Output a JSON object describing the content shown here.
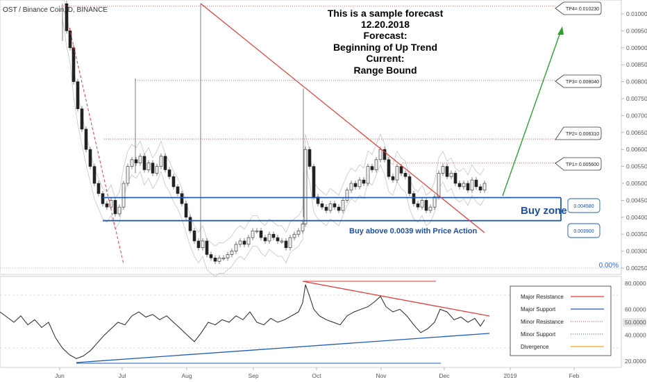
{
  "header": {
    "symbol_title": "OST / Binance Coin, D, BINANCE"
  },
  "annotation": {
    "lines": [
      "This is a sample forecast",
      "12.20.2018",
      "Forecast:",
      "Beginning of Up Trend",
      "Current:",
      "Range Bound"
    ]
  },
  "targets": [
    {
      "label": "TP4= 0.010230",
      "value": 0.01023
    },
    {
      "label": "TP3= 0.008040",
      "value": 0.00804
    },
    {
      "label": "TP2= 0.006310",
      "value": 0.00631
    },
    {
      "label": "TP1= 0.005600",
      "value": 0.0056
    }
  ],
  "zones": {
    "upper_label": "0.004580",
    "upper_value": 0.00458,
    "lower_label": "0.003900",
    "lower_value": 0.0039,
    "buy_zone_text": "Buy zone",
    "buy_above_text": "Buy above 0.0039 with Price Action"
  },
  "price_axis": {
    "ticks": [
      "0.010000",
      "0.009500",
      "0.009000",
      "0.008500",
      "0.008000",
      "0.007500",
      "0.007000",
      "0.006500",
      "0.006000",
      "0.005500",
      "0.005000",
      "0.004500",
      "0.004000",
      "0.003500",
      "0.003000",
      "0.002500"
    ],
    "percent_label": "0.00%"
  },
  "oscillator": {
    "ticks": [
      "80.0000",
      "60.0000",
      "50.0000",
      "40.0000",
      "20.0000"
    ],
    "highlight": "50.0000"
  },
  "time_axis": {
    "labels": [
      "Jun",
      "Jul",
      "Aug",
      "Sep",
      "Oct",
      "Nov",
      "Dec",
      "2019",
      "Feb"
    ]
  },
  "legend": {
    "items": [
      {
        "label": "Major Resistance",
        "color": "#e53935",
        "style": "solid"
      },
      {
        "label": "Major Support",
        "color": "#1e5bb8",
        "style": "solid"
      },
      {
        "label": "Minor Resistance",
        "color": "#e53935",
        "style": "dotted"
      },
      {
        "label": "Minor Support",
        "color": "#1e5bb8",
        "style": "dotted"
      },
      {
        "label": "Divergence",
        "color": "#f5b642",
        "style": "solid"
      }
    ]
  },
  "chart_data": {
    "type": "candlestick",
    "title": "OST / Binance Coin, D, BINANCE",
    "approx_price_series": {
      "x": [
        "Jun 1",
        "Jun 10",
        "Jun 20",
        "Jul 1",
        "Jul 10",
        "Jul 20",
        "Aug 1",
        "Aug 10",
        "Aug 20",
        "Sep 1",
        "Sep 10",
        "Sep 20",
        "Sep 25",
        "Oct 1",
        "Oct 10",
        "Oct 20",
        "Nov 1",
        "Nov 10",
        "Nov 20",
        "Dec 1",
        "Dec 10",
        "Dec 20"
      ],
      "close": [
        0.0092,
        0.006,
        0.0043,
        0.005,
        0.0057,
        0.0053,
        0.0045,
        0.0036,
        0.003,
        0.0033,
        0.0036,
        0.0033,
        0.0035,
        0.0046,
        0.0043,
        0.0048,
        0.0055,
        0.005,
        0.0043,
        0.0049,
        0.005,
        0.0049
      ]
    },
    "price_range": [
      0.00245,
      0.0102
    ],
    "oscillator_range": [
      15,
      85
    ]
  },
  "colors": {
    "resistance": "#e53935",
    "support": "#1e5bb8",
    "forecast_arrow": "#2ca02c",
    "candle_up": "#f2f2f2",
    "candle_down": "#222222"
  }
}
